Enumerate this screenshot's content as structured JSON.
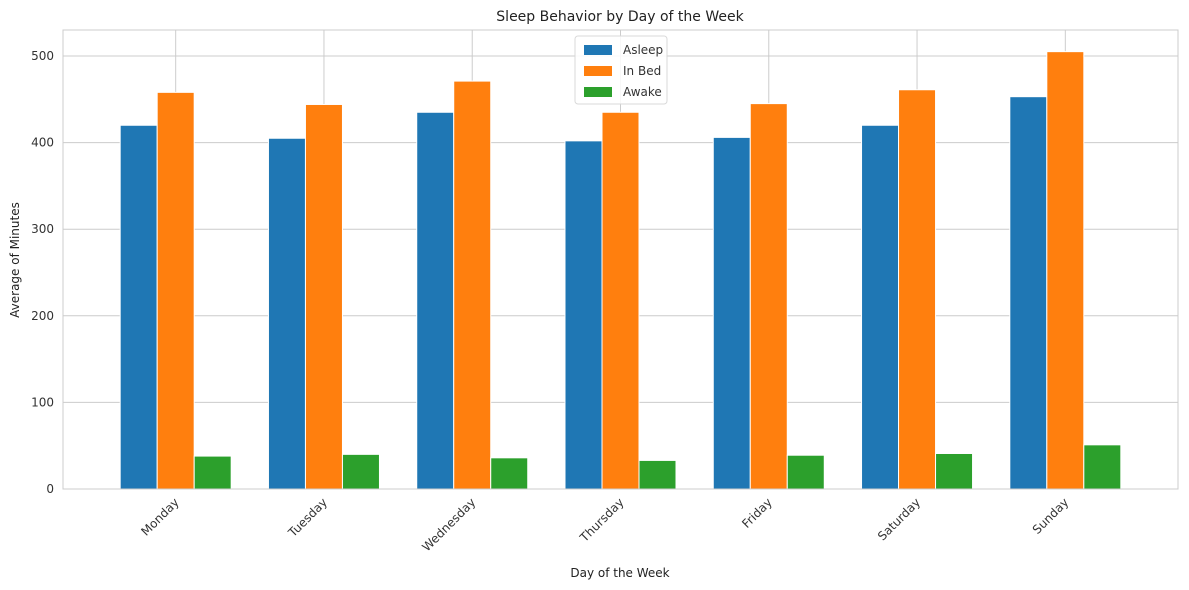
{
  "chart_data": {
    "type": "bar",
    "title": "Sleep Behavior by Day of the Week",
    "xlabel": "Day of the Week",
    "ylabel": "Average of Minutes",
    "categories": [
      "Monday",
      "Tuesday",
      "Wednesday",
      "Thursday",
      "Friday",
      "Saturday",
      "Sunday"
    ],
    "series": [
      {
        "name": "Asleep",
        "color": "#1f77b4",
        "values": [
          420,
          405,
          435,
          402,
          406,
          420,
          453
        ]
      },
      {
        "name": "In Bed",
        "color": "#ff7f0e",
        "values": [
          458,
          444,
          471,
          435,
          445,
          461,
          505
        ]
      },
      {
        "name": "Awake",
        "color": "#2ca02c",
        "values": [
          38,
          40,
          36,
          33,
          39,
          41,
          51
        ]
      }
    ],
    "ylim": [
      0,
      530
    ],
    "yticks": [
      0,
      100,
      200,
      300,
      400,
      500
    ],
    "grid": true,
    "legend_position": "top-center"
  }
}
